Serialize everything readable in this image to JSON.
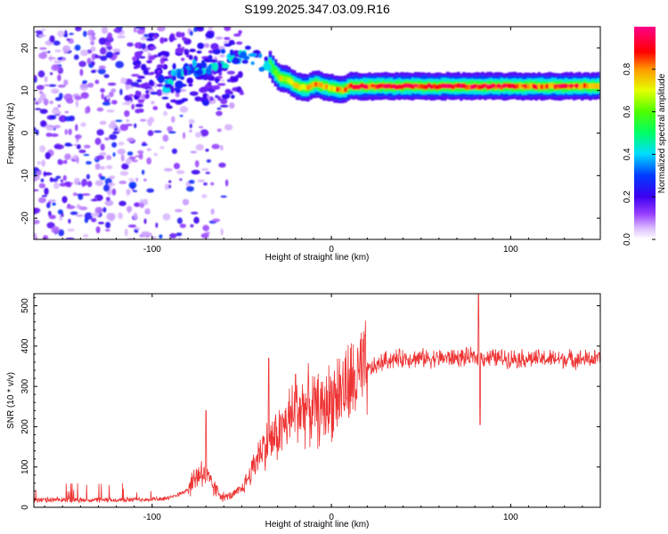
{
  "figure": {
    "title": "S199.2025.347.03.09.R16"
  },
  "colors": {
    "snr_line": "#ee3333",
    "frame": "#000000",
    "background": "#ffffff"
  },
  "chart_data": [
    {
      "type": "heatmap",
      "name": "spectrogram",
      "xlabel": "Height of straight line (km)",
      "ylabel": "Frequency (Hz)",
      "xlim": [
        -166,
        150
      ],
      "ylim": [
        -25,
        25
      ],
      "xticks": [
        -100,
        0,
        100
      ],
      "xtick_labels": [
        "-100",
        "0",
        "100"
      ],
      "yticks": [
        -20,
        -10,
        0,
        10,
        20
      ],
      "ytick_labels": [
        "-20",
        "-10",
        "0",
        "10",
        "20"
      ],
      "ridge": {
        "x": [
          -60,
          -50,
          -45,
          -40,
          -35,
          -30,
          -25,
          -20,
          -15,
          -10,
          -5,
          0,
          5,
          10,
          30,
          60,
          100,
          150
        ],
        "y": [
          20,
          17.5,
          18,
          17,
          16,
          13,
          12.5,
          11,
          10.5,
          11.5,
          11,
          10.5,
          10,
          11,
          11,
          11,
          11,
          11
        ],
        "amplitude": [
          0.3,
          0.45,
          0.55,
          0.6,
          0.55,
          0.7,
          0.75,
          0.75,
          0.8,
          0.85,
          0.8,
          0.8,
          0.85,
          0.9,
          0.95,
          0.95,
          0.9,
          0.85
        ]
      },
      "noise_region": {
        "x_range": [
          -166,
          -55
        ],
        "y_range": [
          -25,
          25
        ],
        "amplitude_range": [
          0.05,
          0.3
        ]
      },
      "colorbar": {
        "label": "Normalized spectral amplitude",
        "range": [
          0,
          1
        ],
        "ticks": [
          0.0,
          0.2,
          0.4,
          0.6,
          0.8
        ],
        "tick_labels": [
          "0.0",
          "0.2",
          "0.4",
          "0.6",
          "0.8"
        ]
      }
    },
    {
      "type": "line",
      "name": "snr",
      "xlabel": "Height of straight line (km)",
      "ylabel": "SNR (10 * v/v)",
      "xlim": [
        -166,
        150
      ],
      "ylim": [
        0,
        530
      ],
      "xticks": [
        -100,
        0,
        100
      ],
      "xtick_labels": [
        "-100",
        "0",
        "100"
      ],
      "yticks": [
        0,
        100,
        200,
        300,
        400,
        500
      ],
      "ytick_labels": [
        "0",
        "100",
        "200",
        "300",
        "400",
        "500"
      ],
      "series": [
        {
          "name": "SNR",
          "color": "#ee3333",
          "envelope_x": [
            -166,
            -120,
            -90,
            -80,
            -75,
            -72,
            -70,
            -65,
            -60,
            -55,
            -50,
            -45,
            -40,
            -35,
            -30,
            -25,
            -20,
            -15,
            -10,
            -5,
            0,
            5,
            10,
            15,
            20,
            25,
            30,
            40,
            60,
            80,
            100,
            120,
            150
          ],
          "envelope_y": [
            18,
            18,
            22,
            45,
            80,
            90,
            75,
            45,
            25,
            30,
            45,
            85,
            140,
            160,
            180,
            210,
            240,
            250,
            245,
            240,
            270,
            290,
            300,
            320,
            340,
            350,
            365,
            370,
            370,
            372,
            370,
            368,
            368
          ],
          "spikes": [
            {
              "x": -70,
              "y": 240
            },
            {
              "x": -35,
              "y": 370
            },
            {
              "x": -20,
              "y": 330
            },
            {
              "x": 82,
              "y": 530
            },
            {
              "x": 83,
              "y": 205
            }
          ]
        }
      ]
    }
  ]
}
